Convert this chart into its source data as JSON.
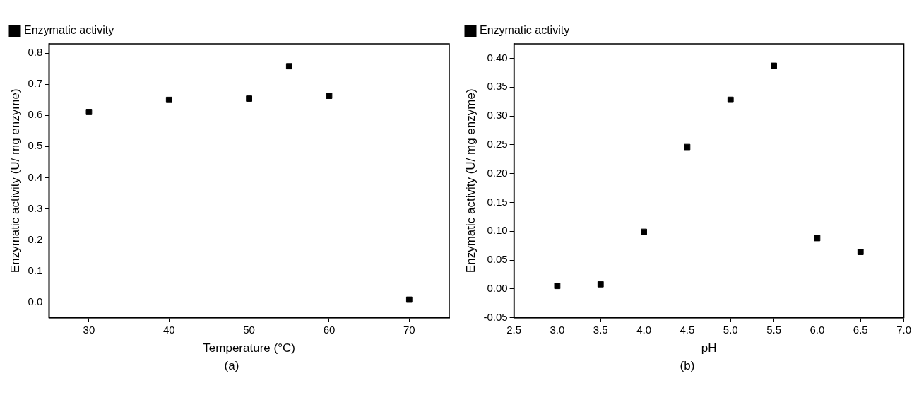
{
  "chart_data": [
    {
      "type": "scatter",
      "xlabel": "Temperature (°C)",
      "ylabel": "Enzymatic activity (U/ mg enzyme)",
      "annotations": [
        "(a)"
      ],
      "legend": "top left",
      "grid": false,
      "marker": "square",
      "xlim": [
        25,
        75
      ],
      "xticks": [
        30,
        40,
        50,
        60,
        70
      ],
      "ylim": [
        -0.05,
        0.83
      ],
      "yticks": [
        {
          "value": 0,
          "label": "0.0"
        },
        0.1,
        0.2,
        0.3,
        0.4,
        0.5,
        0.6,
        0.7,
        0.8
      ],
      "series": [
        {
          "name": "Enzymatic activity",
          "color": "#000000",
          "x": [
            30,
            40,
            50,
            55,
            60,
            70
          ],
          "values": [
            0.611,
            0.65,
            0.654,
            0.758,
            0.663,
            0.008
          ]
        }
      ]
    },
    {
      "type": "scatter",
      "xlabel": "pH",
      "ylabel": "Enzymatic activity (U/ mg enzyme)",
      "annotations": [
        "(b)"
      ],
      "legend": "top left",
      "grid": false,
      "marker": "square",
      "xlim": [
        2.5,
        7.0
      ],
      "xticks": [
        2.5,
        {
          "value": 3,
          "label": "3.0"
        },
        3.5,
        {
          "value": 4,
          "label": "4.0"
        },
        4.5,
        {
          "value": 5,
          "label": "5.0"
        },
        5.5,
        {
          "value": 6,
          "label": "6.0"
        },
        6.5,
        {
          "value": 7,
          "label": "7.0"
        }
      ],
      "ylim": [
        -0.05,
        0.425
      ],
      "yticks": [
        -0.05,
        {
          "value": 0,
          "label": "0.00"
        },
        0.05,
        {
          "value": 0.1,
          "label": "0.10"
        },
        0.15,
        {
          "value": 0.2,
          "label": "0.20"
        },
        0.25,
        {
          "value": 0.3,
          "label": "0.30"
        },
        0.35,
        {
          "value": 0.4,
          "label": "0.40"
        }
      ],
      "series": [
        {
          "name": "Enzymatic activity",
          "color": "#000000",
          "x": [
            3.0,
            3.5,
            4.0,
            4.5,
            5.0,
            5.5,
            6.0,
            6.5
          ],
          "values": [
            0.005,
            0.008,
            0.099,
            0.246,
            0.328,
            0.387,
            0.088,
            0.064
          ]
        }
      ]
    }
  ]
}
